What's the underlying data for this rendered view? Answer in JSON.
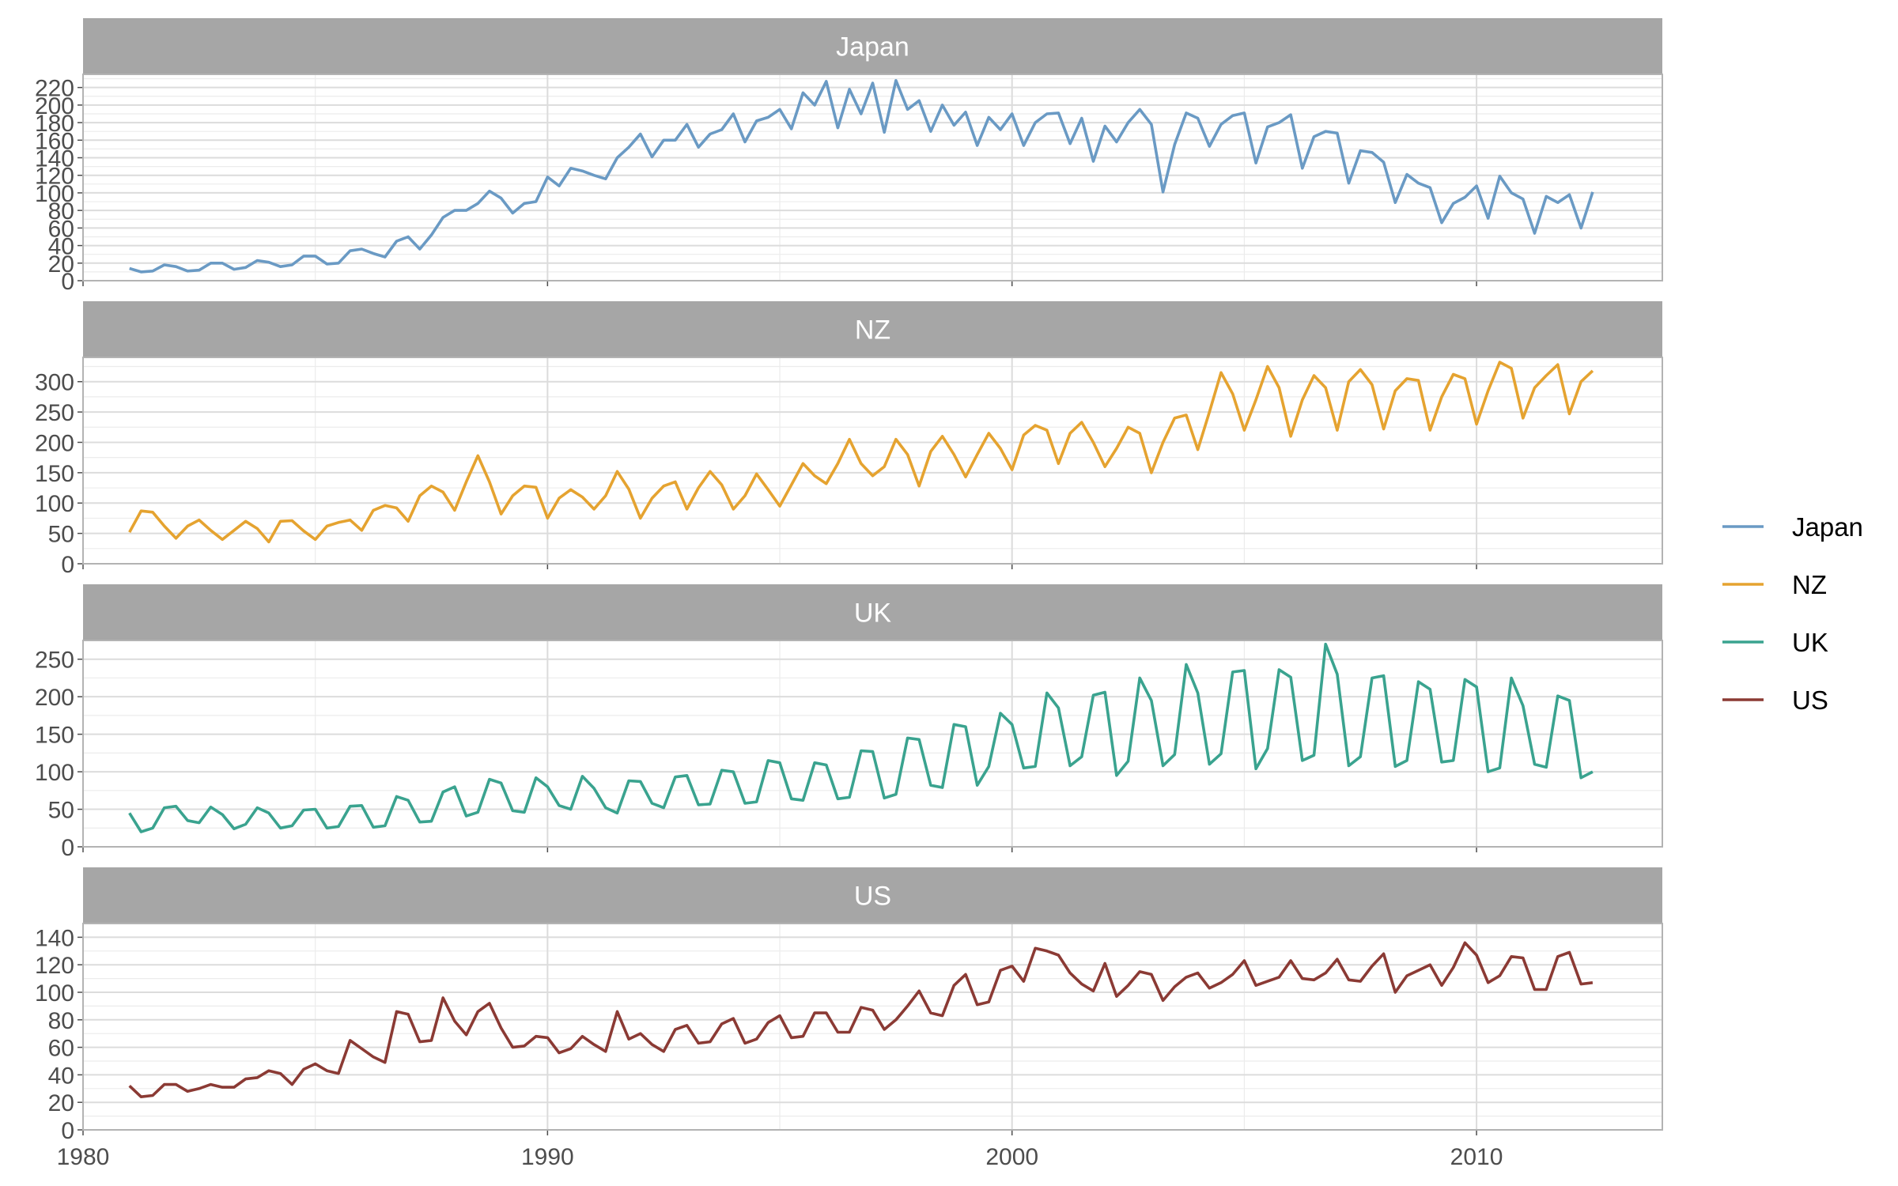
{
  "chart_data": {
    "type": "line",
    "facets": [
      "Japan",
      "NZ",
      "UK",
      "US"
    ],
    "colors": {
      "Japan": "#6a9ac4",
      "NZ": "#e5a330",
      "UK": "#3aa38f",
      "US": "#8b3a34",
      "strip": "#a6a6a6"
    },
    "xlim": [
      1980,
      2014
    ],
    "x_ticks": [
      1980,
      1990,
      2000,
      2010
    ],
    "x_tick_labels": [
      "1980",
      "1990",
      "2000",
      "2010"
    ],
    "x_start": 1981.0,
    "x_step": 0.25,
    "ylim": {
      "Japan": [
        0,
        235
      ],
      "NZ": [
        0,
        340
      ],
      "UK": [
        0,
        275
      ],
      "US": [
        0,
        150
      ]
    },
    "y_ticks": {
      "Japan": [
        0,
        20,
        40,
        60,
        80,
        100,
        120,
        140,
        160,
        180,
        200,
        220
      ],
      "NZ": [
        0,
        50,
        100,
        150,
        200,
        250,
        300
      ],
      "UK": [
        0,
        50,
        100,
        150,
        200,
        250
      ],
      "US": [
        0,
        20,
        40,
        60,
        80,
        100,
        120,
        140
      ]
    },
    "legend": [
      "Japan",
      "NZ",
      "UK",
      "US"
    ],
    "legend_position": "right",
    "series": [
      {
        "name": "Japan",
        "values": [
          14,
          10,
          11,
          18,
          16,
          11,
          12,
          20,
          20,
          13,
          15,
          23,
          21,
          16,
          18,
          28,
          28,
          19,
          20,
          34,
          36,
          31,
          27,
          45,
          50,
          36,
          52,
          72,
          80,
          80,
          88,
          102,
          94,
          77,
          88,
          90,
          118,
          108,
          128,
          125,
          120,
          116,
          140,
          152,
          167,
          141,
          160,
          160,
          178,
          152,
          167,
          172,
          190,
          158,
          182,
          186,
          195,
          173,
          214,
          200,
          227,
          174,
          218,
          190,
          225,
          169,
          228,
          195,
          205,
          170,
          200,
          177,
          192,
          154,
          186,
          172,
          190,
          154,
          180,
          190,
          191,
          156,
          185,
          136,
          176,
          158,
          180,
          195,
          178,
          101,
          155,
          191,
          185,
          153,
          178,
          188,
          191,
          134,
          175,
          180,
          189,
          128,
          164,
          170,
          168,
          111,
          148,
          146,
          135,
          89,
          121,
          111,
          106,
          66,
          88,
          95,
          108,
          71,
          119,
          100,
          93,
          54,
          96,
          89,
          98,
          60,
          101
        ]
      },
      {
        "name": "NZ",
        "values": [
          52,
          87,
          85,
          62,
          42,
          62,
          72,
          55,
          40,
          55,
          70,
          58,
          36,
          70,
          71,
          54,
          40,
          62,
          68,
          72,
          55,
          88,
          96,
          92,
          70,
          112,
          128,
          118,
          88,
          135,
          178,
          135,
          82,
          112,
          128,
          126,
          75,
          108,
          122,
          110,
          90,
          112,
          152,
          123,
          75,
          108,
          128,
          135,
          90,
          125,
          152,
          130,
          90,
          112,
          148,
          122,
          95,
          130,
          165,
          145,
          132,
          165,
          205,
          165,
          145,
          160,
          205,
          180,
          128,
          185,
          210,
          180,
          143,
          180,
          215,
          190,
          155,
          212,
          228,
          220,
          165,
          215,
          233,
          200,
          160,
          190,
          225,
          215,
          150,
          200,
          240,
          245,
          188,
          250,
          315,
          280,
          220,
          270,
          325,
          290,
          210,
          270,
          310,
          290,
          220,
          300,
          320,
          295,
          222,
          285,
          305,
          302,
          220,
          275,
          312,
          305,
          230,
          285,
          332,
          322,
          240,
          290,
          310,
          328,
          247,
          300,
          318
        ]
      },
      {
        "name": "UK",
        "values": [
          45,
          20,
          25,
          52,
          54,
          35,
          32,
          53,
          43,
          24,
          30,
          52,
          45,
          25,
          28,
          49,
          50,
          25,
          27,
          54,
          55,
          26,
          28,
          67,
          62,
          33,
          34,
          73,
          80,
          41,
          46,
          90,
          85,
          48,
          46,
          92,
          80,
          55,
          50,
          94,
          78,
          52,
          45,
          88,
          87,
          58,
          52,
          93,
          95,
          56,
          57,
          102,
          100,
          58,
          60,
          115,
          112,
          64,
          62,
          112,
          109,
          64,
          66,
          128,
          127,
          65,
          70,
          145,
          143,
          82,
          79,
          163,
          160,
          82,
          107,
          178,
          163,
          105,
          107,
          205,
          185,
          108,
          120,
          202,
          206,
          95,
          114,
          225,
          195,
          108,
          123,
          243,
          205,
          110,
          124,
          233,
          235,
          104,
          131,
          236,
          226,
          115,
          122,
          270,
          230,
          108,
          120,
          225,
          228,
          107,
          115,
          220,
          210,
          113,
          115,
          223,
          213,
          100,
          105,
          225,
          188,
          110,
          106,
          201,
          195,
          92,
          100
        ]
      },
      {
        "name": "US",
        "values": [
          32,
          24,
          25,
          33,
          33,
          28,
          30,
          33,
          31,
          31,
          37,
          38,
          43,
          41,
          33,
          44,
          48,
          43,
          41,
          65,
          59,
          53,
          49,
          86,
          84,
          64,
          65,
          96,
          79,
          69,
          86,
          92,
          74,
          60,
          61,
          68,
          67,
          56,
          59,
          68,
          62,
          57,
          86,
          66,
          70,
          62,
          57,
          73,
          76,
          63,
          64,
          77,
          81,
          63,
          66,
          78,
          83,
          67,
          68,
          85,
          85,
          71,
          71,
          89,
          87,
          73,
          80,
          90,
          101,
          85,
          83,
          105,
          113,
          91,
          93,
          116,
          119,
          108,
          132,
          130,
          127,
          114,
          106,
          101,
          121,
          97,
          105,
          115,
          113,
          94,
          104,
          111,
          114,
          103,
          107,
          113,
          123,
          105,
          108,
          111,
          123,
          110,
          109,
          114,
          124,
          109,
          108,
          119,
          128,
          100,
          112,
          116,
          120,
          105,
          118,
          136,
          127,
          107,
          112,
          126,
          125,
          102,
          102,
          126,
          129,
          106,
          107
        ]
      }
    ]
  }
}
